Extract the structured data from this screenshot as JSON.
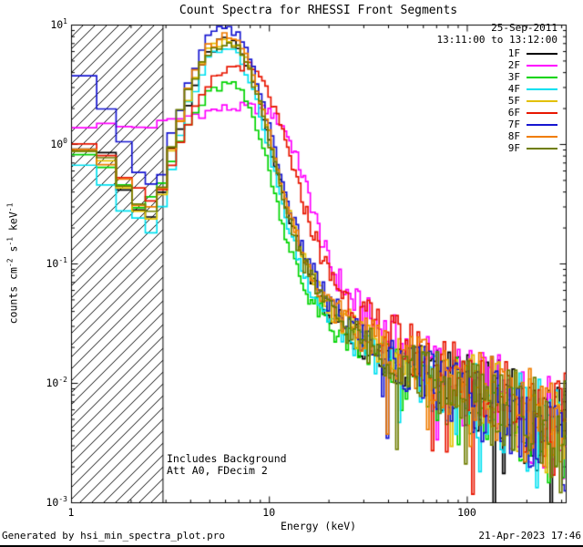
{
  "header": {
    "title": "Count Spectra for RHESSI Front Segments"
  },
  "observation": {
    "date": "25-Sep-2011",
    "time_range": "13:11:00 to 13:12:00"
  },
  "annotations": {
    "line1": "Includes Background",
    "line2": "Att A0, FDecim 2"
  },
  "footer": {
    "generator": "Generated by hsi_min_spectra_plot.pro",
    "timestamp": "21-Apr-2023 17:46"
  },
  "axes": {
    "xlabel": "Energy (keV)",
    "ylabel_parts": [
      {
        "t": "counts cm"
      },
      {
        "sup": "-2"
      },
      {
        "t": " s"
      },
      {
        "sup": "-1"
      },
      {
        "t": " keV"
      },
      {
        "sup": "-1"
      }
    ],
    "xticks": [
      1,
      10,
      100
    ],
    "yticks_exp": [
      -3,
      -2,
      -1,
      0,
      1
    ]
  },
  "chart_data": {
    "type": "line",
    "title": "Count Spectra for RHESSI Front Segments",
    "xlabel": "Energy (keV)",
    "ylabel": "counts cm^-2 s^-1 keV^-1",
    "x_scale": "log",
    "y_scale": "log",
    "xlim": [
      1,
      316
    ],
    "ylim": [
      0.001,
      10
    ],
    "grid": false,
    "legend_position": "top-right",
    "hatch_region_keV": [
      1,
      2.9
    ],
    "attenuation_line_keV": 2.9,
    "noise": {
      "onset_keV": 12,
      "max_dex": 0.42
    },
    "series": [
      {
        "name": "1F",
        "color": "#000000",
        "points": [
          [
            1,
            1.1
          ],
          [
            1.3,
            0.95
          ],
          [
            1.6,
            0.72
          ],
          [
            2.0,
            0.35
          ],
          [
            2.4,
            0.22
          ],
          [
            2.8,
            0.34
          ],
          [
            3.2,
            0.9
          ],
          [
            4,
            2.5
          ],
          [
            5,
            6.0
          ],
          [
            6,
            7.5
          ],
          [
            7,
            6.4
          ],
          [
            8,
            4.0
          ],
          [
            9,
            2.2
          ],
          [
            10,
            1.1
          ],
          [
            12,
            0.32
          ],
          [
            15,
            0.1
          ],
          [
            20,
            0.04
          ],
          [
            30,
            0.022
          ],
          [
            50,
            0.014
          ],
          [
            70,
            0.011
          ],
          [
            100,
            0.009
          ],
          [
            150,
            0.0068
          ],
          [
            200,
            0.0052
          ],
          [
            300,
            0.0036
          ]
        ]
      },
      {
        "name": "2F",
        "color": "#ff00ff",
        "points": [
          [
            1,
            1.5
          ],
          [
            1.5,
            1.43
          ],
          [
            2,
            1.38
          ],
          [
            3,
            1.5
          ],
          [
            4,
            1.75
          ],
          [
            5,
            1.9
          ],
          [
            6,
            2.0
          ],
          [
            8,
            2.05
          ],
          [
            10,
            1.9
          ],
          [
            12,
            1.35
          ],
          [
            14,
            0.72
          ],
          [
            16,
            0.36
          ],
          [
            18,
            0.18
          ],
          [
            20,
            0.1
          ],
          [
            25,
            0.055
          ],
          [
            30,
            0.038
          ],
          [
            50,
            0.019
          ],
          [
            70,
            0.013
          ],
          [
            100,
            0.01
          ],
          [
            150,
            0.0072
          ],
          [
            200,
            0.0058
          ],
          [
            300,
            0.0038
          ]
        ]
      },
      {
        "name": "3F",
        "color": "#00d400",
        "points": [
          [
            1,
            1.0
          ],
          [
            1.4,
            0.8
          ],
          [
            1.8,
            0.5
          ],
          [
            2.2,
            0.3
          ],
          [
            2.6,
            0.34
          ],
          [
            3,
            0.55
          ],
          [
            3.5,
            1.0
          ],
          [
            4,
            1.6
          ],
          [
            5,
            2.7
          ],
          [
            6,
            3.2
          ],
          [
            7,
            2.95
          ],
          [
            8,
            2.0
          ],
          [
            9,
            1.2
          ],
          [
            10,
            0.6
          ],
          [
            12,
            0.18
          ],
          [
            15,
            0.062
          ],
          [
            20,
            0.03
          ],
          [
            30,
            0.018
          ],
          [
            50,
            0.012
          ],
          [
            70,
            0.009
          ],
          [
            100,
            0.0078
          ],
          [
            150,
            0.006
          ],
          [
            200,
            0.0048
          ],
          [
            300,
            0.0033
          ]
        ]
      },
      {
        "name": "4F",
        "color": "#00e0f0",
        "points": [
          [
            1,
            0.85
          ],
          [
            1.4,
            0.55
          ],
          [
            1.8,
            0.3
          ],
          [
            2.2,
            0.22
          ],
          [
            2.6,
            0.17
          ],
          [
            3,
            0.35
          ],
          [
            3.5,
            1.2
          ],
          [
            4,
            2.5
          ],
          [
            5,
            5.5
          ],
          [
            6,
            7.0
          ],
          [
            7,
            5.9
          ],
          [
            8,
            3.5
          ],
          [
            9,
            1.8
          ],
          [
            10,
            0.9
          ],
          [
            12,
            0.25
          ],
          [
            15,
            0.08
          ],
          [
            20,
            0.035
          ],
          [
            30,
            0.02
          ],
          [
            50,
            0.013
          ],
          [
            70,
            0.0098
          ],
          [
            100,
            0.008
          ],
          [
            150,
            0.0062
          ],
          [
            200,
            0.005
          ],
          [
            300,
            0.0036
          ]
        ]
      },
      {
        "name": "5F",
        "color": "#e3c000",
        "points": [
          [
            1,
            1.05
          ],
          [
            1.4,
            0.8
          ],
          [
            1.8,
            0.45
          ],
          [
            2.2,
            0.3
          ],
          [
            2.6,
            0.25
          ],
          [
            3,
            0.5
          ],
          [
            3.5,
            1.5
          ],
          [
            4,
            3.0
          ],
          [
            5,
            6.5
          ],
          [
            6,
            7.8
          ],
          [
            7,
            6.7
          ],
          [
            8,
            4.2
          ],
          [
            9,
            2.3
          ],
          [
            10,
            1.2
          ],
          [
            12,
            0.35
          ],
          [
            15,
            0.11
          ],
          [
            20,
            0.045
          ],
          [
            30,
            0.024
          ],
          [
            50,
            0.015
          ],
          [
            70,
            0.011
          ],
          [
            100,
            0.009
          ],
          [
            150,
            0.0069
          ],
          [
            200,
            0.0054
          ],
          [
            300,
            0.0038
          ]
        ]
      },
      {
        "name": "6F",
        "color": "#e81600",
        "points": [
          [
            1,
            1.2
          ],
          [
            1.4,
            1.0
          ],
          [
            1.8,
            0.6
          ],
          [
            2.2,
            0.4
          ],
          [
            2.6,
            0.35
          ],
          [
            3,
            0.5
          ],
          [
            3.5,
            0.9
          ],
          [
            4,
            1.6
          ],
          [
            5,
            3.2
          ],
          [
            6,
            4.2
          ],
          [
            7,
            4.6
          ],
          [
            8,
            4.45
          ],
          [
            9,
            3.6
          ],
          [
            10,
            2.6
          ],
          [
            12,
            1.1
          ],
          [
            14,
            0.45
          ],
          [
            16,
            0.22
          ],
          [
            20,
            0.082
          ],
          [
            25,
            0.05
          ],
          [
            30,
            0.036
          ],
          [
            50,
            0.02
          ],
          [
            70,
            0.0145
          ],
          [
            100,
            0.011
          ],
          [
            150,
            0.008
          ],
          [
            200,
            0.0062
          ],
          [
            300,
            0.0042
          ]
        ]
      },
      {
        "name": "7F",
        "color": "#1616d0",
        "points": [
          [
            1,
            4.0
          ],
          [
            1.3,
            3.0
          ],
          [
            1.6,
            1.5
          ],
          [
            2.0,
            1.0
          ],
          [
            2.4,
            0.4
          ],
          [
            2.8,
            0.52
          ],
          [
            3.2,
            1.3
          ],
          [
            4,
            3.6
          ],
          [
            5,
            8.2
          ],
          [
            6,
            9.5
          ],
          [
            7,
            8.0
          ],
          [
            8,
            5.0
          ],
          [
            9,
            2.8
          ],
          [
            10,
            1.4
          ],
          [
            12,
            0.4
          ],
          [
            15,
            0.12
          ],
          [
            20,
            0.046
          ],
          [
            30,
            0.024
          ],
          [
            50,
            0.014
          ],
          [
            70,
            0.01
          ],
          [
            100,
            0.008
          ],
          [
            150,
            0.0061
          ],
          [
            200,
            0.0049
          ],
          [
            300,
            0.0034
          ]
        ]
      },
      {
        "name": "8F",
        "color": "#f07d00",
        "points": [
          [
            1,
            1.1
          ],
          [
            1.4,
            0.85
          ],
          [
            1.8,
            0.5
          ],
          [
            2.2,
            0.3
          ],
          [
            2.6,
            0.28
          ],
          [
            3,
            0.55
          ],
          [
            3.5,
            1.6
          ],
          [
            4,
            3.2
          ],
          [
            5,
            6.8
          ],
          [
            6,
            8.0
          ],
          [
            7,
            6.9
          ],
          [
            8,
            4.5
          ],
          [
            9,
            2.4
          ],
          [
            10,
            1.25
          ],
          [
            12,
            0.36
          ],
          [
            15,
            0.11
          ],
          [
            20,
            0.046
          ],
          [
            30,
            0.025
          ],
          [
            50,
            0.016
          ],
          [
            70,
            0.0115
          ],
          [
            100,
            0.0092
          ],
          [
            150,
            0.007
          ],
          [
            200,
            0.0055
          ],
          [
            300,
            0.0039
          ]
        ]
      },
      {
        "name": "9F",
        "color": "#6f7d00",
        "points": [
          [
            1,
            1.0
          ],
          [
            1.4,
            0.8
          ],
          [
            1.8,
            0.5
          ],
          [
            2.2,
            0.33
          ],
          [
            2.6,
            0.3
          ],
          [
            3,
            0.6
          ],
          [
            3.5,
            1.7
          ],
          [
            4,
            3.3
          ],
          [
            5,
            6.2
          ],
          [
            6,
            7.2
          ],
          [
            7,
            6.1
          ],
          [
            8,
            3.9
          ],
          [
            9,
            2.1
          ],
          [
            10,
            1.05
          ],
          [
            12,
            0.3
          ],
          [
            15,
            0.1
          ],
          [
            20,
            0.041
          ],
          [
            30,
            0.022
          ],
          [
            50,
            0.0138
          ],
          [
            70,
            0.0102
          ],
          [
            100,
            0.0082
          ],
          [
            150,
            0.0063
          ],
          [
            200,
            0.005
          ],
          [
            300,
            0.0036
          ]
        ]
      }
    ]
  }
}
